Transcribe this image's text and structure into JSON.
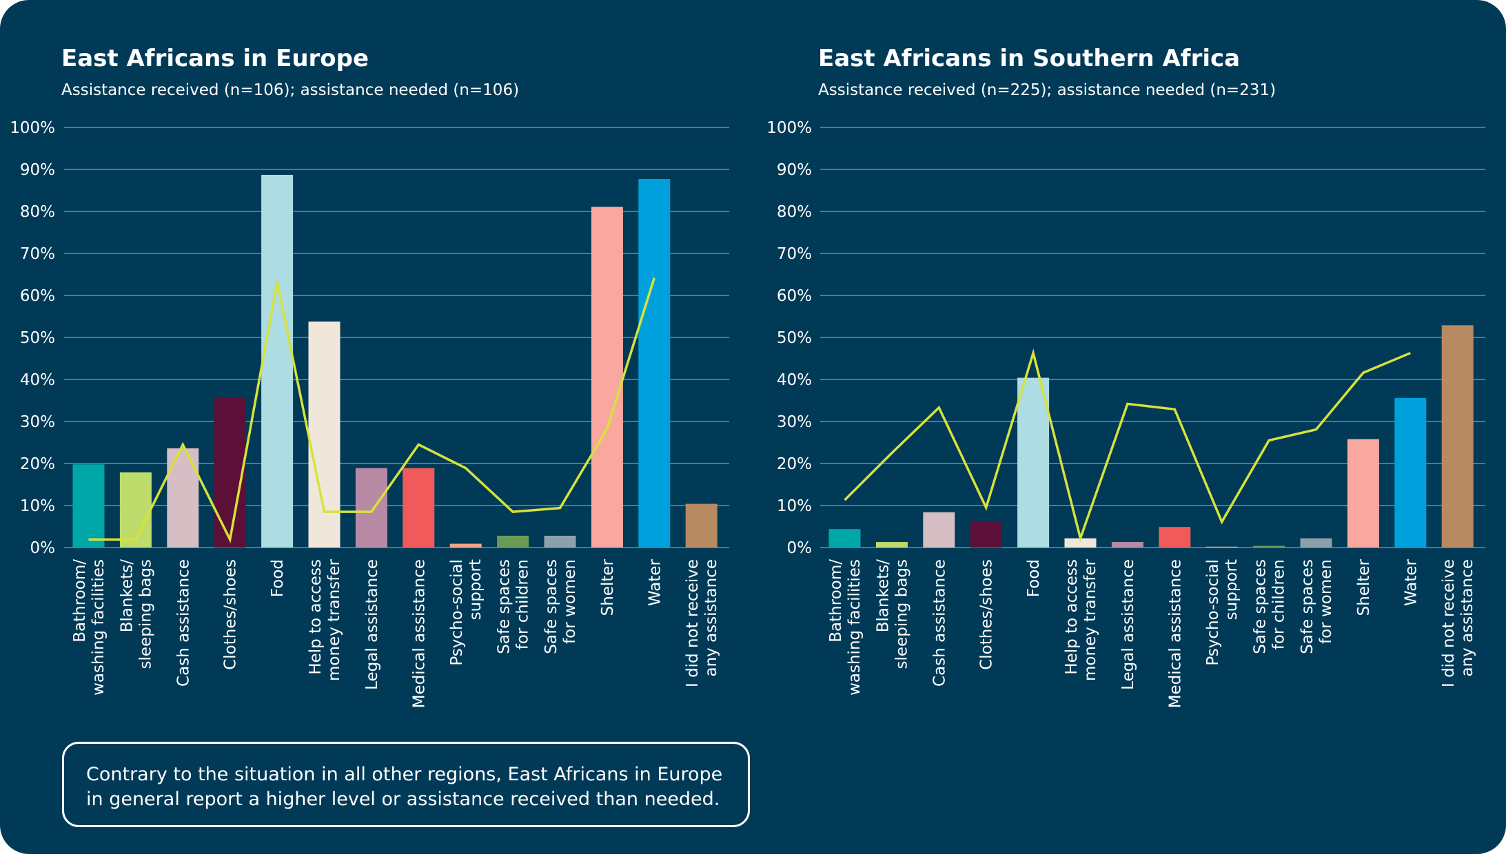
{
  "chart_data": [
    {
      "type": "bar",
      "title": "East Africans in Europe",
      "subtitle": "Assistance received (n=106); assistance needed (n=106)",
      "categories": [
        [
          "Bathroom/",
          "washing facilities"
        ],
        [
          "Blankets/",
          "sleeping bags"
        ],
        [
          "Cash assistance"
        ],
        [
          "Clothes/shoes"
        ],
        [
          "Food"
        ],
        [
          "Help to access",
          "money transfer"
        ],
        [
          "Legal assistance"
        ],
        [
          "Medical assistance"
        ],
        [
          "Psycho-social",
          "support"
        ],
        [
          "Safe spaces",
          "for children"
        ],
        [
          "Safe spaces",
          "for women"
        ],
        [
          "Shelter"
        ],
        [
          "Water"
        ],
        [
          "I did not receive",
          "any assistance"
        ]
      ],
      "bar_colors": [
        "#00a7a8",
        "#bedc6c",
        "#d5bfc5",
        "#5c1038",
        "#addce2",
        "#f0e7da",
        "#b88aa6",
        "#f05a5b",
        "#f3a688",
        "#6b9a57",
        "#8da1ad",
        "#f9a8a0",
        "#00a0dc",
        "#b88a62"
      ],
      "series": [
        {
          "type": "bar",
          "values": [
            19.8,
            17.9,
            23.6,
            35.8,
            88.7,
            53.8,
            18.9,
            18.9,
            0.9,
            2.8,
            2.8,
            81.1,
            87.7,
            10.4
          ]
        },
        {
          "type": "line",
          "color": "#d7e23a",
          "values": [
            1.9,
            1.9,
            24.5,
            1.9,
            63.2,
            8.5,
            8.5,
            24.5,
            18.9,
            8.5,
            9.4,
            28.3,
            64.2,
            null
          ]
        }
      ],
      "y_tick_labels": [
        "0%",
        "10%",
        "20%",
        "30%",
        "40%",
        "50%",
        "60%",
        "70%",
        "80%",
        "90%",
        "100%"
      ],
      "ylim": [
        0,
        100
      ],
      "grid": true
    },
    {
      "type": "bar",
      "title": "East Africans in Southern Africa",
      "subtitle": "Assistance received (n=225); assistance needed (n=231)",
      "categories": [
        [
          "Bathroom/",
          "washing facilities"
        ],
        [
          "Blankets/",
          "sleeping bags"
        ],
        [
          "Cash assistance"
        ],
        [
          "Clothes/shoes"
        ],
        [
          "Food"
        ],
        [
          "Help to access",
          "money transfer"
        ],
        [
          "Legal assistance"
        ],
        [
          "Medical assistance"
        ],
        [
          "Psycho-social",
          "support"
        ],
        [
          "Safe spaces",
          "for children"
        ],
        [
          "Safe spaces",
          "for women"
        ],
        [
          "Shelter"
        ],
        [
          "Water"
        ],
        [
          "I did not receive",
          "any assistance"
        ]
      ],
      "bar_colors": [
        "#00a7a8",
        "#bedc6c",
        "#d5bfc5",
        "#5c1038",
        "#addce2",
        "#f0e7da",
        "#b88aa6",
        "#f05a5b",
        "#f3a688",
        "#6b9a57",
        "#8da1ad",
        "#f9a8a0",
        "#00a0dc",
        "#b88a62"
      ],
      "series": [
        {
          "type": "bar",
          "values": [
            4.4,
            1.3,
            8.4,
            6.2,
            40.4,
            2.2,
            1.3,
            4.9,
            0.2,
            0.4,
            2.2,
            25.8,
            35.6,
            52.9
          ]
        },
        {
          "type": "line",
          "color": "#d7e23a",
          "values": [
            11.3,
            22.5,
            33.3,
            9.5,
            46.3,
            2.2,
            34.2,
            32.9,
            6.1,
            25.5,
            28.1,
            41.6,
            46.3,
            null
          ]
        }
      ],
      "y_tick_labels": [
        "0%",
        "10%",
        "20%",
        "30%",
        "40%",
        "50%",
        "60%",
        "70%",
        "80%",
        "90%",
        "100%"
      ],
      "ylim": [
        0,
        100
      ],
      "grid": true
    }
  ],
  "colors": {
    "background": "#003a57",
    "gridline": "#4a7a96",
    "text": "#ffffff",
    "needed_line": "#d7e23a"
  },
  "callout": {
    "line1": "Contrary to the situation in all other regions, East Africans in Europe",
    "line2": "in general report a higher level or assistance received than needed."
  }
}
